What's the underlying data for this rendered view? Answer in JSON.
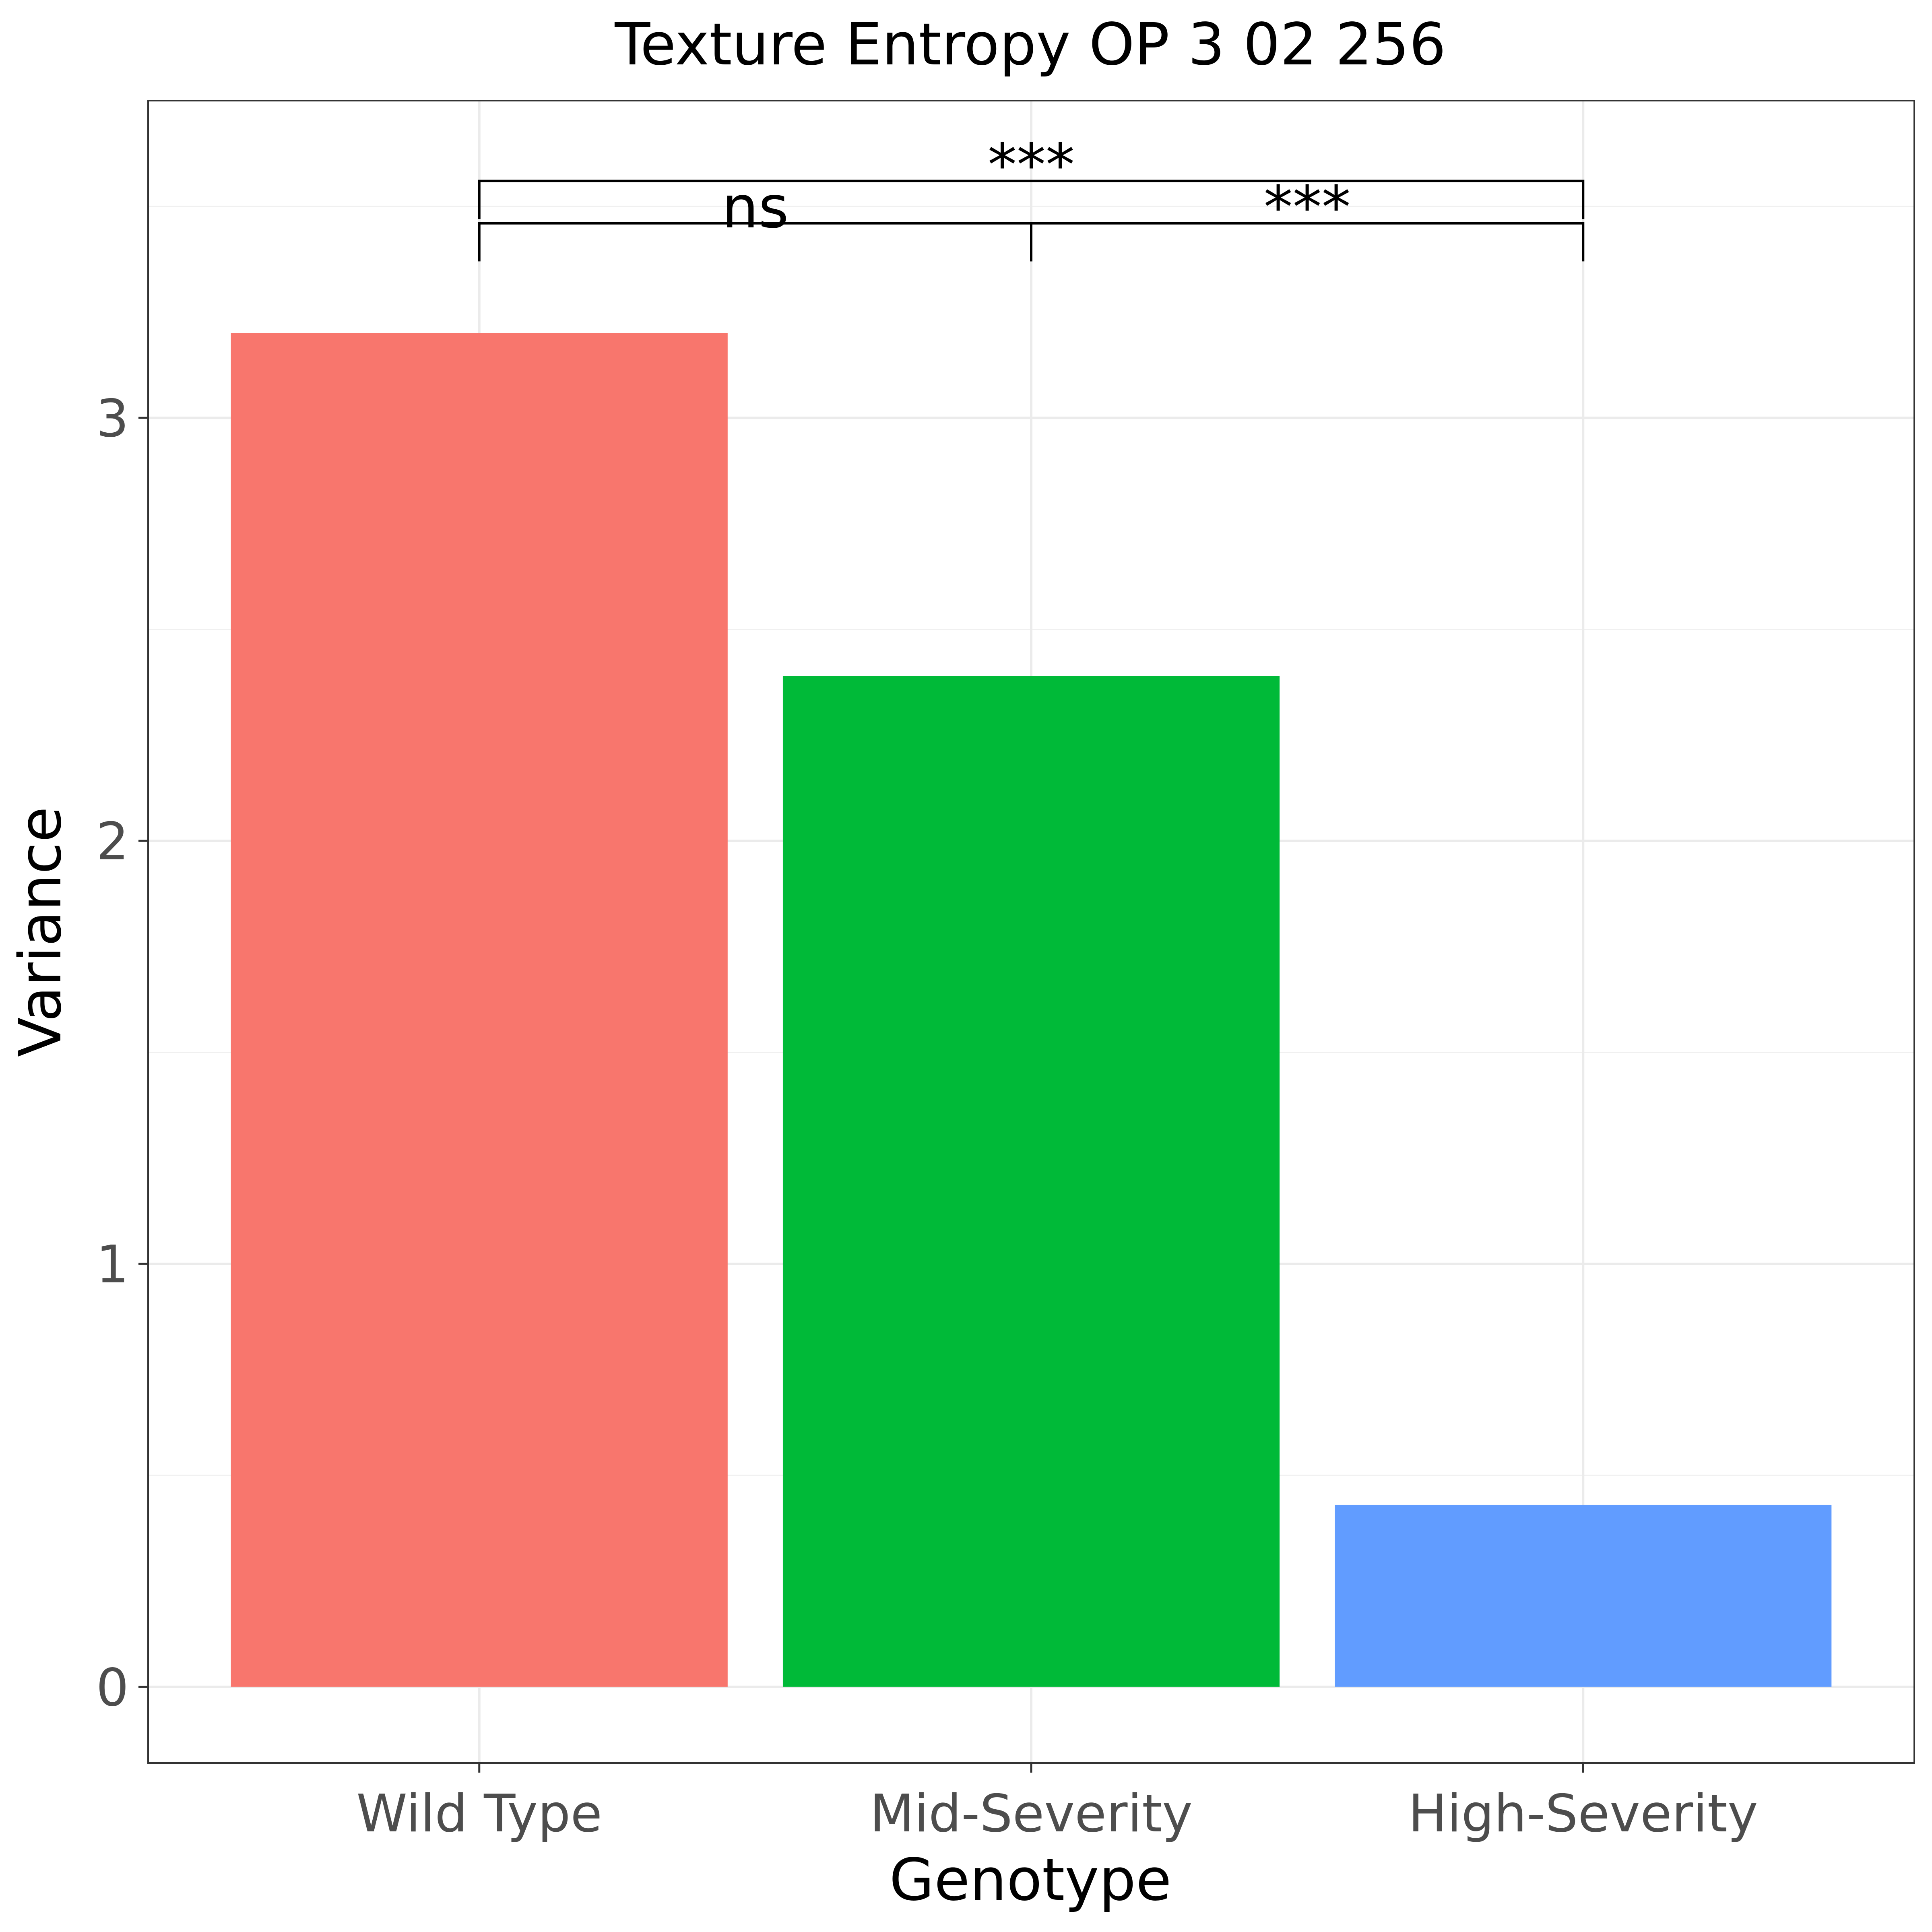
{
  "chart_data": {
    "type": "bar",
    "title": "Texture Entropy OP 3 02 256",
    "xlabel": "Genotype",
    "ylabel": "Variance",
    "categories": [
      "Wild Type",
      "Mid-Severity",
      "High-Severity"
    ],
    "values": [
      3.2,
      2.39,
      0.43
    ],
    "colors": [
      "#F8766D",
      "#00BA38",
      "#619CFF"
    ],
    "ylim": [
      -0.18,
      3.75
    ],
    "yticks": [
      0,
      1,
      2,
      3
    ],
    "grid": true,
    "legend": "none",
    "significance": [
      {
        "from": "Wild Type",
        "to": "Mid-Severity",
        "label": "ns",
        "y": 3.46
      },
      {
        "from": "Mid-Severity",
        "to": "High-Severity",
        "label": "***",
        "y": 3.46
      },
      {
        "from": "Wild Type",
        "to": "High-Severity",
        "label": "***",
        "y": 3.56
      }
    ]
  }
}
